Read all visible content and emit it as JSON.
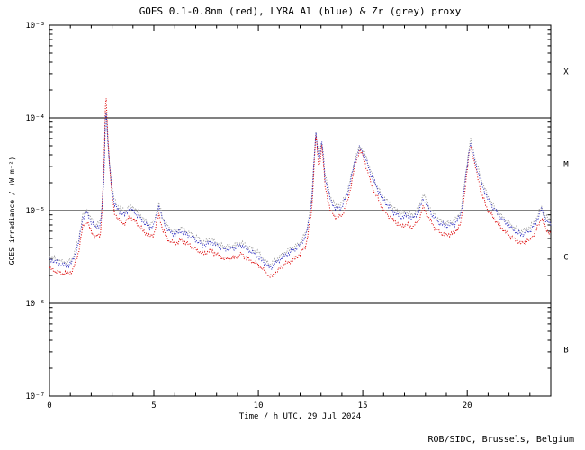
{
  "chart_data": {
    "type": "line",
    "title": "GOES 0.1-0.8nm (red), LYRA Al (blue) & Zr (grey) proxy",
    "xlabel": "Time / h UTC, 29 Jul 2024",
    "ylabel": "GOES irradiance / (W m⁻²)",
    "credit": "ROB/SIDC, Brussels, Belgium",
    "x_range": [
      0,
      24
    ],
    "x_major_ticks": [
      0,
      5,
      10,
      15,
      20
    ],
    "x_minor_step": 1,
    "y_scale": "log",
    "y_range_exp": [
      -7,
      -3
    ],
    "y_tick_labels": [
      "10⁻⁷",
      "10⁻⁶",
      "10⁻⁵",
      "10⁻⁴",
      "10⁻³"
    ],
    "hlines_exp": [
      -4,
      -5,
      -6
    ],
    "grid": "off",
    "legend": "in-title",
    "class_labels": [
      {
        "label": "X",
        "exp": -3.5
      },
      {
        "label": "M",
        "exp": -4.5
      },
      {
        "label": "C",
        "exp": -5.5
      },
      {
        "label": "B",
        "exp": -6.5
      }
    ],
    "x": [
      0.0,
      0.3,
      0.6,
      0.9,
      1.1,
      1.4,
      1.6,
      1.8,
      2.0,
      2.2,
      2.45,
      2.6,
      2.7,
      2.8,
      2.95,
      3.1,
      3.3,
      3.6,
      3.8,
      4.0,
      4.2,
      4.5,
      4.8,
      5.0,
      5.25,
      5.4,
      5.7,
      6.0,
      6.3,
      6.6,
      7.0,
      7.4,
      7.7,
      8.0,
      8.4,
      8.8,
      9.2,
      9.5,
      10.0,
      10.4,
      10.6,
      10.9,
      11.2,
      11.6,
      12.0,
      12.3,
      12.55,
      12.75,
      12.9,
      13.05,
      13.2,
      13.45,
      13.7,
      14.0,
      14.3,
      14.6,
      14.85,
      15.1,
      15.4,
      15.7,
      16.0,
      16.4,
      16.8,
      17.1,
      17.4,
      17.7,
      17.9,
      18.1,
      18.4,
      18.7,
      19.0,
      19.4,
      19.7,
      19.95,
      20.15,
      20.4,
      20.7,
      21.0,
      21.4,
      21.8,
      22.2,
      22.6,
      23.0,
      23.3,
      23.55,
      23.75,
      24.0
    ],
    "series": [
      {
        "name": "GOES 0.1-0.8nm",
        "color": "#dd0000",
        "values": [
          2.4e-06,
          2.2e-06,
          2.1e-06,
          2.1e-06,
          2.2e-06,
          3.6e-06,
          6.8e-06,
          7.6e-06,
          6e-06,
          5.2e-06,
          5.6e-06,
          2.5e-05,
          0.0002,
          6e-05,
          1.8e-05,
          9.6e-06,
          8e-06,
          7.2e-06,
          8.4e-06,
          8e-06,
          7.2e-06,
          6e-06,
          5.2e-06,
          5.6e-06,
          9.2e-06,
          6.4e-06,
          4.8e-06,
          4.4e-06,
          4.8e-06,
          4.4e-06,
          3.8e-06,
          3.4e-06,
          3.7e-06,
          3.4e-06,
          3e-06,
          3.1e-06,
          3.4e-06,
          3e-06,
          2.6e-06,
          2.1e-06,
          1.9e-06,
          2.2e-06,
          2.6e-06,
          2.9e-06,
          3.4e-06,
          4.4e-06,
          9.6e-06,
          6.8e-05,
          2.8e-05,
          5.2e-05,
          1.8e-05,
          1e-05,
          8.4e-06,
          8.8e-06,
          1.3e-05,
          2.9e-05,
          4.6e-05,
          3.4e-05,
          1.9e-05,
          1.4e-05,
          1e-05,
          8e-06,
          6.8e-06,
          7e-06,
          6.6e-06,
          8e-06,
          1.1e-05,
          8.8e-06,
          6.8e-06,
          5.8e-06,
          5.4e-06,
          5.8e-06,
          7.2e-06,
          2.2e-05,
          5.2e-05,
          2.9e-05,
          1.5e-05,
          1e-05,
          7.6e-06,
          6e-06,
          5e-06,
          4.4e-06,
          4.8e-06,
          6e-06,
          8.4e-06,
          6.4e-06,
          5.6e-06
        ]
      },
      {
        "name": "LYRA Al proxy",
        "color": "#2a2ac0",
        "values": [
          3e-06,
          2.8e-06,
          2.6e-06,
          2.6e-06,
          2.8e-06,
          4.5e-06,
          8.5e-06,
          9.5e-06,
          7.5e-06,
          6.5e-06,
          7e-06,
          2e-05,
          0.00015,
          5e-05,
          2e-05,
          1.2e-05,
          1e-05,
          9e-06,
          1.05e-05,
          1e-05,
          9e-06,
          7.5e-06,
          6.5e-06,
          7e-06,
          1.15e-05,
          8e-06,
          6e-06,
          5.5e-06,
          6e-06,
          5.5e-06,
          4.8e-06,
          4.2e-06,
          4.6e-06,
          4.2e-06,
          3.8e-06,
          3.9e-06,
          4.2e-06,
          3.8e-06,
          3.2e-06,
          2.6e-06,
          2.4e-06,
          2.8e-06,
          3.2e-06,
          3.6e-06,
          4.2e-06,
          5.5e-06,
          1.2e-05,
          7e-05,
          3.5e-05,
          5.5e-05,
          2.2e-05,
          1.3e-05,
          1.05e-05,
          1.1e-05,
          1.6e-05,
          3.2e-05,
          4.8e-05,
          3.8e-05,
          2.4e-05,
          1.7e-05,
          1.3e-05,
          1e-05,
          8.5e-06,
          8.8e-06,
          8.2e-06,
          1e-05,
          1.35e-05,
          1.1e-05,
          8.5e-06,
          7.2e-06,
          6.8e-06,
          7.2e-06,
          9e-06,
          2.5e-05,
          5.5e-05,
          3.2e-05,
          1.9e-05,
          1.3e-05,
          9.5e-06,
          7.5e-06,
          6.2e-06,
          5.5e-06,
          6e-06,
          7.5e-06,
          1.05e-05,
          8e-06,
          7e-06
        ]
      },
      {
        "name": "LYRA Zr proxy",
        "color": "#9a9a9a",
        "values": [
          3.2e-06,
          3e-06,
          2.8e-06,
          2.8e-06,
          3e-06,
          4.9e-06,
          9.2e-06,
          1e-05,
          8.1e-06,
          7e-06,
          7.6e-06,
          2.1e-05,
          0.00014,
          5.2e-05,
          2.1e-05,
          1.3e-05,
          1.1e-05,
          9.7e-06,
          1.1e-05,
          1.1e-05,
          9.7e-06,
          8.1e-06,
          7e-06,
          7.6e-06,
          1.2e-05,
          8.6e-06,
          6.5e-06,
          5.9e-06,
          6.5e-06,
          5.9e-06,
          5.2e-06,
          4.5e-06,
          5e-06,
          4.5e-06,
          4.1e-06,
          4.2e-06,
          4.5e-06,
          4.1e-06,
          3.5e-06,
          2.8e-06,
          2.6e-06,
          3e-06,
          3.5e-06,
          3.9e-06,
          4.5e-06,
          5.9e-06,
          1.3e-05,
          7.2e-05,
          3.8e-05,
          5.7e-05,
          2.4e-05,
          1.4e-05,
          1.1e-05,
          1.2e-05,
          1.7e-05,
          3.4e-05,
          5e-05,
          4.1e-05,
          2.6e-05,
          1.8e-05,
          1.4e-05,
          1.1e-05,
          9.2e-06,
          9.5e-06,
          8.9e-06,
          1.1e-05,
          1.5e-05,
          1.2e-05,
          9.2e-06,
          7.8e-06,
          7.3e-06,
          7.8e-06,
          9.7e-06,
          2.7e-05,
          5.9e-05,
          3.5e-05,
          2.1e-05,
          1.4e-05,
          1e-05,
          8.1e-06,
          6.7e-06,
          5.9e-06,
          6.5e-06,
          8.1e-06,
          1.1e-05,
          8.6e-06,
          7.6e-06
        ]
      }
    ]
  }
}
